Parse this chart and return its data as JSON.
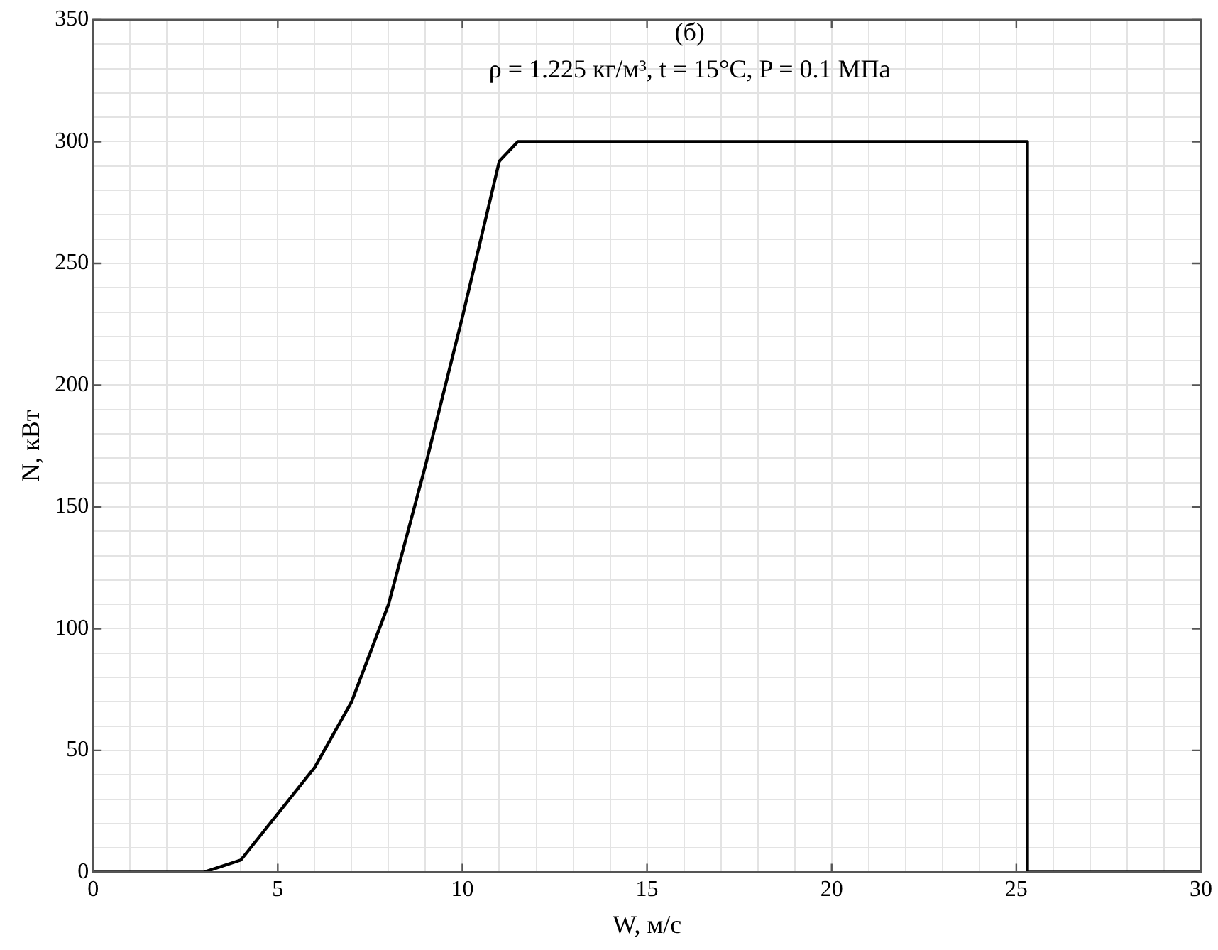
{
  "chart_data": {
    "type": "line",
    "title": "(б)",
    "subtitle": "ρ = 1.225 кг/м³, t = 15°C, P = 0.1 МПа",
    "xlabel": "W, м/с",
    "ylabel": "N, кВт",
    "series": [
      {
        "color": "#000000",
        "x": [
          0,
          3,
          4,
          5,
          6,
          7,
          8,
          9,
          10,
          11,
          11.5,
          25.3,
          25.3,
          30
        ],
        "values": [
          0,
          0,
          5,
          24,
          43,
          70,
          110,
          167,
          228,
          292,
          300,
          300,
          0,
          0
        ]
      }
    ],
    "xlim": [
      0,
      30
    ],
    "xticks": [
      0,
      {
        "value": 1,
        "label": null
      },
      {
        "value": 2,
        "label": null
      },
      {
        "value": 3,
        "label": null
      },
      {
        "value": 4,
        "label": null
      },
      5,
      {
        "value": 6,
        "label": null
      },
      {
        "value": 7,
        "label": null
      },
      {
        "value": 8,
        "label": null
      },
      {
        "value": 9,
        "label": null
      },
      10,
      {
        "value": 11,
        "label": null
      },
      {
        "value": 12,
        "label": null
      },
      {
        "value": 13,
        "label": null
      },
      {
        "value": 14,
        "label": null
      },
      15,
      {
        "value": 16,
        "label": null
      },
      {
        "value": 17,
        "label": null
      },
      {
        "value": 18,
        "label": null
      },
      {
        "value": 19,
        "label": null
      },
      20,
      {
        "value": 21,
        "label": null
      },
      {
        "value": 22,
        "label": null
      },
      {
        "value": 23,
        "label": null
      },
      {
        "value": 24,
        "label": null
      },
      25,
      {
        "value": 26,
        "label": null
      },
      {
        "value": 27,
        "label": null
      },
      {
        "value": 28,
        "label": null
      },
      {
        "value": 29,
        "label": null
      },
      30
    ],
    "ylim": [
      0,
      350
    ],
    "yticks": [
      0,
      {
        "value": 10,
        "label": null
      },
      {
        "value": 20,
        "label": null
      },
      {
        "value": 30,
        "label": null
      },
      {
        "value": 40,
        "label": null
      },
      50,
      {
        "value": 60,
        "label": null
      },
      {
        "value": 70,
        "label": null
      },
      {
        "value": 80,
        "label": null
      },
      {
        "value": 90,
        "label": null
      },
      100,
      {
        "value": 110,
        "label": null
      },
      {
        "value": 120,
        "label": null
      },
      {
        "value": 130,
        "label": null
      },
      {
        "value": 140,
        "label": null
      },
      150,
      {
        "value": 160,
        "label": null
      },
      {
        "value": 170,
        "label": null
      },
      {
        "value": 180,
        "label": null
      },
      {
        "value": 190,
        "label": null
      },
      200,
      {
        "value": 210,
        "label": null
      },
      {
        "value": 220,
        "label": null
      },
      {
        "value": 230,
        "label": null
      },
      {
        "value": 240,
        "label": null
      },
      250,
      {
        "value": 260,
        "label": null
      },
      {
        "value": 270,
        "label": null
      },
      {
        "value": 280,
        "label": null
      },
      {
        "value": 290,
        "label": null
      },
      300,
      {
        "value": 310,
        "label": null
      },
      {
        "value": 320,
        "label": null
      },
      {
        "value": 330,
        "label": null
      },
      {
        "value": 340,
        "label": null
      },
      350
    ],
    "grid": true,
    "marker": "none",
    "line_style": "solid",
    "legend": false
  }
}
